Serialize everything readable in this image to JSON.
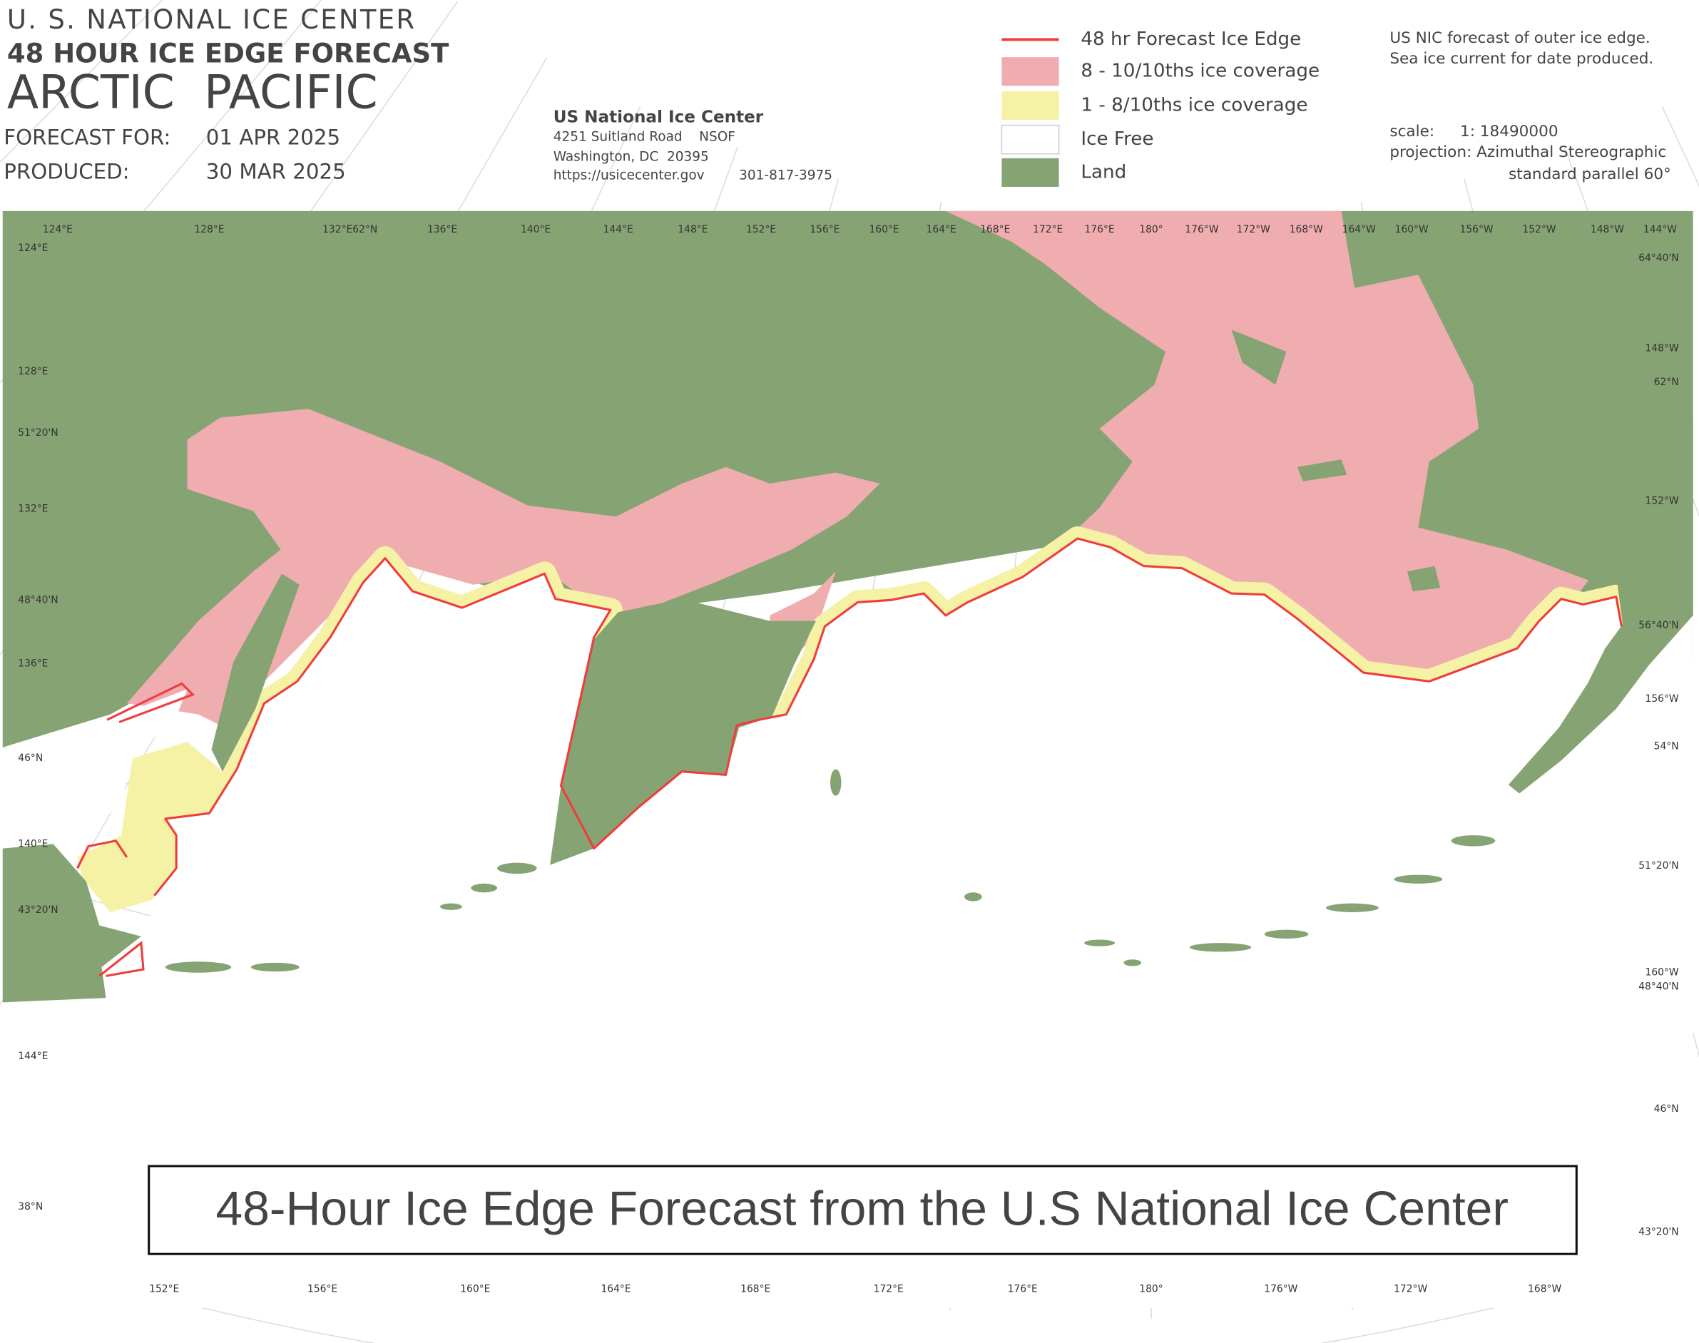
{
  "header": {
    "agency": "U. S. NATIONAL ICE CENTER",
    "product": "48 HOUR ICE EDGE FORECAST",
    "region": "ARCTIC  PACIFIC",
    "forecast_label": "FORECAST FOR:",
    "forecast_date": "01 APR 2025",
    "produced_label": "PRODUCED:",
    "produced_date": "30 MAR 2025"
  },
  "contact": {
    "name": "US National Ice Center",
    "address": "4251 Suitland Road    NSOF",
    "city": "Washington, DC  20395",
    "url": "https://usicecenter.gov",
    "phone": "301-817-3975"
  },
  "legend": [
    {
      "label": "48 hr Forecast Ice Edge",
      "color": "#f03c3c"
    },
    {
      "label": "8 - 10/10ths ice coverage",
      "color": "#f0adb0"
    },
    {
      "label": "1 - 8/10ths ice coverage",
      "color": "#f5f2a6"
    },
    {
      "label": "Ice Free",
      "color": "#ffffff"
    },
    {
      "label": "Land",
      "color": "#86a374"
    }
  ],
  "notes": {
    "line1": "US NIC forecast of outer ice edge.",
    "line2": "Sea ice current for date produced.",
    "scale_label": "scale:",
    "scale": "1: 18490000",
    "projection": "projection: Azimuthal Stereographic",
    "parallel": "standard parallel 60°"
  },
  "graticule_labels": {
    "top": [
      "124°E",
      "128°E",
      "132°E62°N",
      "136°E",
      "140°E",
      "144°E",
      "148°E",
      "152°E",
      "156°E",
      "160°E",
      "164°E",
      "168°E",
      "172°E",
      "176°E",
      "180°",
      "176°W",
      "172°W",
      "168°W",
      "164°W",
      "160°W",
      "156°W",
      "152°W",
      "148°W",
      "144°W"
    ],
    "left": [
      "124°E",
      "128°E",
      "51°20'N",
      "132°E",
      "48°40'N",
      "136°E",
      "46°N",
      "140°E",
      "43°20'N",
      "144°E",
      "38°N"
    ],
    "right": [
      "64°40'N",
      "148°W",
      "62°N",
      "152°W",
      "56°40'N",
      "156°W",
      "54°N",
      "51°20'N",
      "160°W",
      "48°40'N",
      "46°N",
      "43°20'N"
    ],
    "bottom": [
      "152°E",
      "156°E",
      "160°E",
      "164°E",
      "168°E",
      "172°E",
      "176°E",
      "180°",
      "176°W",
      "172°W",
      "168°W"
    ]
  },
  "caption": "48-Hour Ice Edge Forecast from the U.S National Ice Center"
}
